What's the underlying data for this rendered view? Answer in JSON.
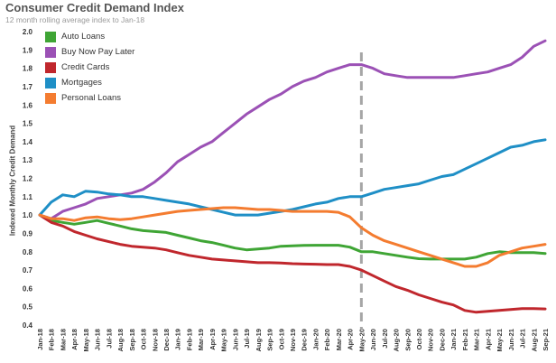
{
  "title": "Consumer Credit Demand Index",
  "subtitle": "12 month rolling average index to Jan-18",
  "chart_data": {
    "type": "line",
    "title": "Consumer Credit Demand Index",
    "subtitle": "12 month rolling average index to Jan-18",
    "ylabel": "Indexed Monthly Credit Demand",
    "xlabel": "",
    "ylim": [
      0.4,
      2.0
    ],
    "yticks": [
      "0.4",
      "0.5",
      "0.6",
      "0.7",
      "0.8",
      "0.9",
      "1.0",
      "1.1",
      "1.2",
      "1.3",
      "1.4",
      "1.5",
      "1.6",
      "1.7",
      "1.8",
      "1.9",
      "2.0"
    ],
    "grid": false,
    "legend_position": "top-left",
    "marker_line": "May-20",
    "categories": [
      "Jan-18",
      "Feb-18",
      "Mar-18",
      "Apr-18",
      "May-18",
      "Jun-18",
      "Jul-18",
      "Aug-18",
      "Sep-18",
      "Oct-18",
      "Nov-18",
      "Dec-18",
      "Jan-19",
      "Feb-19",
      "Mar-19",
      "Apr-19",
      "May-19",
      "Jun-19",
      "Jul-19",
      "Aug-19",
      "Sep-19",
      "Oct-19",
      "Nov-19",
      "Dec-19",
      "Jan-20",
      "Feb-20",
      "Mar-20",
      "Apr-20",
      "May-20",
      "Jun-20",
      "Jul-20",
      "Aug-20",
      "Sep-20",
      "Oct-20",
      "Nov-20",
      "Dec-20",
      "Jan-21",
      "Feb-21",
      "Mar-21",
      "Apr-21",
      "May-21",
      "Jun-21",
      "Jul-21",
      "Aug-21",
      "Sep-21"
    ],
    "series": [
      {
        "name": "Auto Loans",
        "color": "#3fa535",
        "values": [
          1.0,
          0.97,
          0.96,
          0.95,
          0.96,
          0.97,
          0.955,
          0.94,
          0.925,
          0.915,
          0.91,
          0.905,
          0.89,
          0.875,
          0.86,
          0.85,
          0.835,
          0.82,
          0.81,
          0.815,
          0.82,
          0.83,
          0.832,
          0.834,
          0.835,
          0.835,
          0.835,
          0.825,
          0.8,
          0.8,
          0.79,
          0.78,
          0.77,
          0.762,
          0.76,
          0.76,
          0.76,
          0.76,
          0.77,
          0.79,
          0.8,
          0.795,
          0.795,
          0.795,
          0.79
        ]
      },
      {
        "name": "Buy Now Pay Later",
        "color": "#9b51b5",
        "values": [
          1.0,
          0.98,
          1.02,
          1.04,
          1.06,
          1.09,
          1.1,
          1.11,
          1.12,
          1.14,
          1.18,
          1.23,
          1.29,
          1.33,
          1.37,
          1.4,
          1.45,
          1.5,
          1.55,
          1.59,
          1.63,
          1.66,
          1.7,
          1.73,
          1.75,
          1.78,
          1.8,
          1.82,
          1.82,
          1.8,
          1.77,
          1.76,
          1.75,
          1.75,
          1.75,
          1.75,
          1.75,
          1.76,
          1.77,
          1.78,
          1.8,
          1.82,
          1.86,
          1.92,
          1.95
        ]
      },
      {
        "name": "Credit Cards",
        "color": "#c0272d",
        "values": [
          1.0,
          0.96,
          0.94,
          0.91,
          0.89,
          0.87,
          0.855,
          0.84,
          0.83,
          0.825,
          0.82,
          0.81,
          0.795,
          0.78,
          0.77,
          0.76,
          0.755,
          0.75,
          0.745,
          0.74,
          0.74,
          0.738,
          0.735,
          0.733,
          0.732,
          0.73,
          0.73,
          0.72,
          0.7,
          0.67,
          0.64,
          0.61,
          0.59,
          0.565,
          0.545,
          0.525,
          0.51,
          0.48,
          0.47,
          0.475,
          0.48,
          0.485,
          0.49,
          0.49,
          0.488
        ]
      },
      {
        "name": "Mortgages",
        "color": "#1f8fc6",
        "values": [
          1.0,
          1.07,
          1.11,
          1.1,
          1.13,
          1.125,
          1.115,
          1.11,
          1.1,
          1.1,
          1.09,
          1.08,
          1.07,
          1.06,
          1.045,
          1.03,
          1.015,
          1.0,
          1.0,
          1.0,
          1.01,
          1.02,
          1.03,
          1.045,
          1.06,
          1.07,
          1.09,
          1.1,
          1.1,
          1.12,
          1.14,
          1.15,
          1.16,
          1.17,
          1.19,
          1.21,
          1.22,
          1.25,
          1.28,
          1.31,
          1.34,
          1.37,
          1.38,
          1.4,
          1.41
        ]
      },
      {
        "name": "Personal Loans",
        "color": "#f47c30",
        "values": [
          1.0,
          0.98,
          0.98,
          0.97,
          0.985,
          0.99,
          0.98,
          0.975,
          0.98,
          0.99,
          1.0,
          1.01,
          1.02,
          1.025,
          1.03,
          1.035,
          1.04,
          1.04,
          1.035,
          1.03,
          1.03,
          1.025,
          1.02,
          1.02,
          1.02,
          1.02,
          1.015,
          0.99,
          0.93,
          0.89,
          0.86,
          0.84,
          0.82,
          0.8,
          0.78,
          0.76,
          0.74,
          0.72,
          0.72,
          0.74,
          0.78,
          0.8,
          0.82,
          0.83,
          0.84
        ]
      }
    ]
  }
}
